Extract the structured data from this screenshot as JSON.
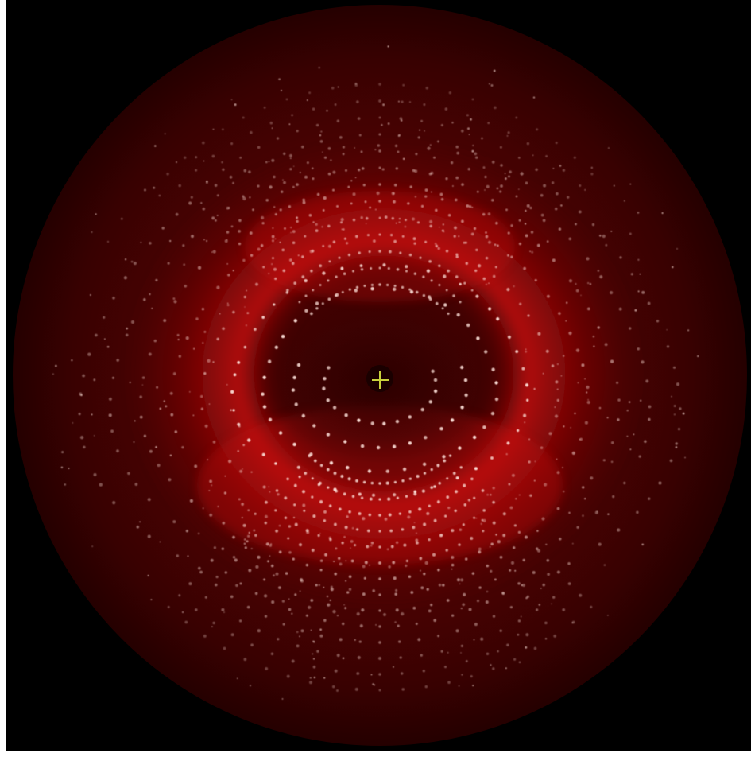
{
  "image": {
    "kind": "x-ray diffraction pattern on circular detector",
    "colors": {
      "background": "#000000",
      "detector_edge": "#2a0000",
      "detector_mid": "#5a0303",
      "glow": "#d41212",
      "beamstop": "#1a0000",
      "beam_center_marker": "#c8d23c",
      "spot": "#ffe4dc"
    },
    "icons": {
      "beam_center": "crosshair-icon"
    }
  }
}
